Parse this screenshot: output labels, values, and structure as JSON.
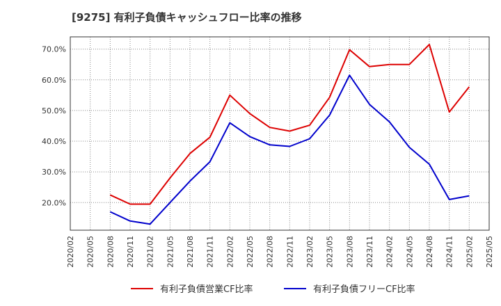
{
  "title": "[9275]  有利子負債キャッシュフロー比率の推移",
  "colors": {
    "series1": "#dd0000",
    "series2": "#0000cc",
    "grid": "#888888",
    "axis": "#333333"
  },
  "chart_data": {
    "type": "line",
    "x_ticks": [
      "2020/02",
      "2020/05",
      "2020/08",
      "2020/11",
      "2021/02",
      "2021/05",
      "2021/08",
      "2021/11",
      "2022/02",
      "2022/05",
      "2022/08",
      "2022/11",
      "2023/02",
      "2023/05",
      "2023/08",
      "2023/11",
      "2024/02",
      "2024/05",
      "2024/08",
      "2024/11",
      "2025/02",
      "2025/05"
    ],
    "y_ticks": [
      "20.0%",
      "30.0%",
      "40.0%",
      "50.0%",
      "60.0%",
      "70.0%"
    ],
    "y_tick_values": [
      20,
      30,
      40,
      50,
      60,
      70
    ],
    "ylim": [
      11,
      74
    ],
    "grid": true,
    "legend_position": "bottom-center",
    "series": [
      {
        "name": "有利子負債営業CF比率",
        "x": [
          "2020/08",
          "2020/11",
          "2021/02",
          "2021/05",
          "2021/08",
          "2021/11",
          "2022/02",
          "2022/05",
          "2022/08",
          "2022/11",
          "2023/02",
          "2023/05",
          "2023/08",
          "2023/11",
          "2024/02",
          "2024/05",
          "2024/08",
          "2024/11",
          "2025/02"
        ],
        "values": [
          22.5,
          19.5,
          19.5,
          28.0,
          36.0,
          41.3,
          55.0,
          49.0,
          44.5,
          43.3,
          45.2,
          54.3,
          69.8,
          64.3,
          65.0,
          65.0,
          71.5,
          49.5,
          57.7
        ]
      },
      {
        "name": "有利子負債フリーCF比率",
        "x": [
          "2020/08",
          "2020/11",
          "2021/02",
          "2021/05",
          "2021/08",
          "2021/11",
          "2022/02",
          "2022/05",
          "2022/08",
          "2022/11",
          "2023/02",
          "2023/05",
          "2023/08",
          "2023/11",
          "2024/02",
          "2024/05",
          "2024/08",
          "2024/11",
          "2025/02"
        ],
        "values": [
          17.0,
          14.0,
          13.0,
          20.0,
          27.0,
          33.3,
          46.0,
          41.5,
          38.8,
          38.3,
          40.8,
          48.5,
          61.5,
          52.0,
          46.3,
          38.0,
          32.5,
          21.0,
          22.2
        ]
      }
    ]
  }
}
